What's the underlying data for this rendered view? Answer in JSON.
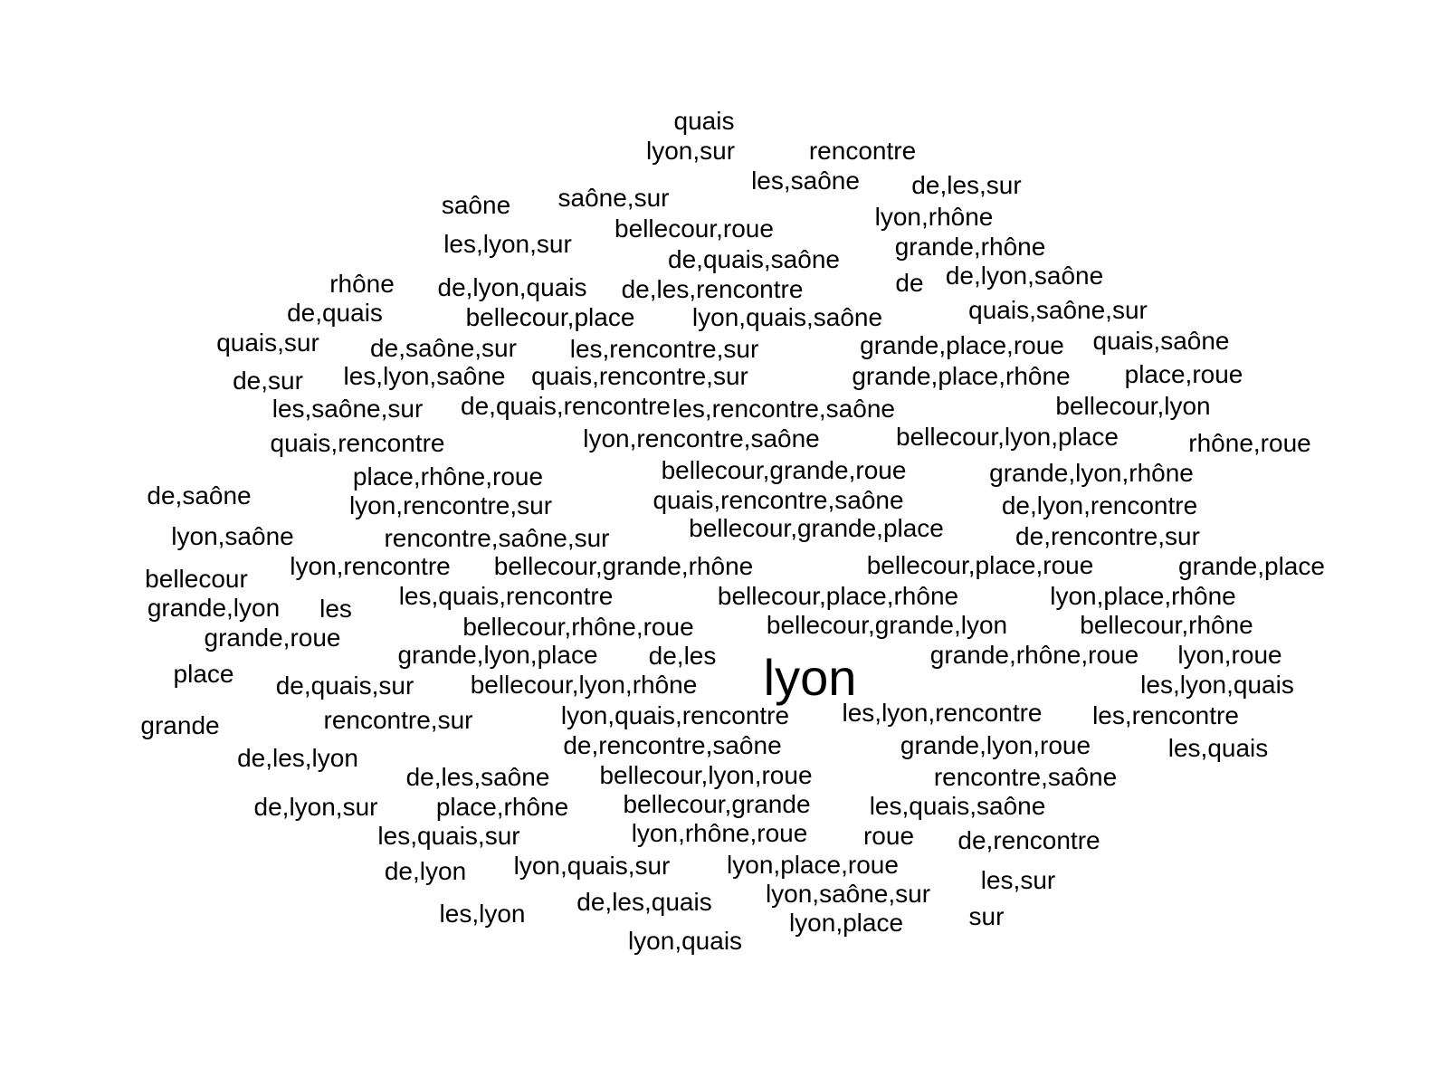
{
  "text_color": "#000000",
  "background_color": "#ffffff",
  "words": [
    "quais",
    "lyon,sur",
    "rencontre",
    "les,saône",
    "de,les,sur",
    "saône",
    "saône,sur",
    "bellecour,roue",
    "lyon,rhône",
    "les,lyon,sur",
    "grande,rhône",
    "de,quais,saône",
    "rhône",
    "de",
    "de,lyon,saône",
    "de,lyon,quais",
    "de,les,rencontre",
    "de,quais",
    "quais,saône,sur",
    "bellecour,place",
    "lyon,quais,saône",
    "quais,sur",
    "de,saône,sur",
    "les,rencontre,sur",
    "grande,place,roue",
    "quais,saône",
    "de,sur",
    "les,lyon,saône",
    "quais,rencontre,sur",
    "grande,place,rhône",
    "place,roue",
    "les,saône,sur",
    "de,quais,rencontre",
    "les,rencontre,saône",
    "bellecour,lyon",
    "quais,rencontre",
    "lyon,rencontre,saône",
    "bellecour,lyon,place",
    "rhône,roue",
    "place,rhône,roue",
    "bellecour,grande,roue",
    "grande,lyon,rhône",
    "de,saône",
    "lyon,rencontre,sur",
    "quais,rencontre,saône",
    "de,lyon,rencontre",
    "lyon,saône",
    "rencontre,saône,sur",
    "bellecour,grande,place",
    "de,rencontre,sur",
    "bellecour",
    "lyon,rencontre",
    "bellecour,grande,rhône",
    "bellecour,place,roue",
    "grande,place",
    "grande,lyon",
    "les",
    "les,quais,rencontre",
    "bellecour,place,rhône",
    "lyon,place,rhône",
    "grande,roue",
    "bellecour,rhône,roue",
    "bellecour,grande,lyon",
    "bellecour,rhône",
    "grande,lyon,place",
    "de,les",
    "lyon",
    "grande,rhône,roue",
    "lyon,roue",
    "place",
    "de,quais,sur",
    "bellecour,lyon,rhône",
    "les,lyon,quais",
    "lyon,quais,rencontre",
    "les,lyon,rencontre",
    "les,rencontre",
    "grande",
    "rencontre,sur",
    "de,rencontre,saône",
    "grande,lyon,roue",
    "les,quais",
    "de,les,lyon",
    "de,les,saône",
    "bellecour,lyon,roue",
    "rencontre,saône",
    "de,lyon,sur",
    "place,rhône",
    "bellecour,grande",
    "les,quais,saône",
    "les,quais,sur",
    "lyon,rhône,roue",
    "roue",
    "de,rencontre",
    "de,lyon",
    "lyon,quais,sur",
    "lyon,place,roue",
    "les,sur",
    "les,lyon",
    "de,les,quais",
    "lyon,saône,sur",
    "sur",
    "lyon,place",
    "lyon,quais"
  ]
}
